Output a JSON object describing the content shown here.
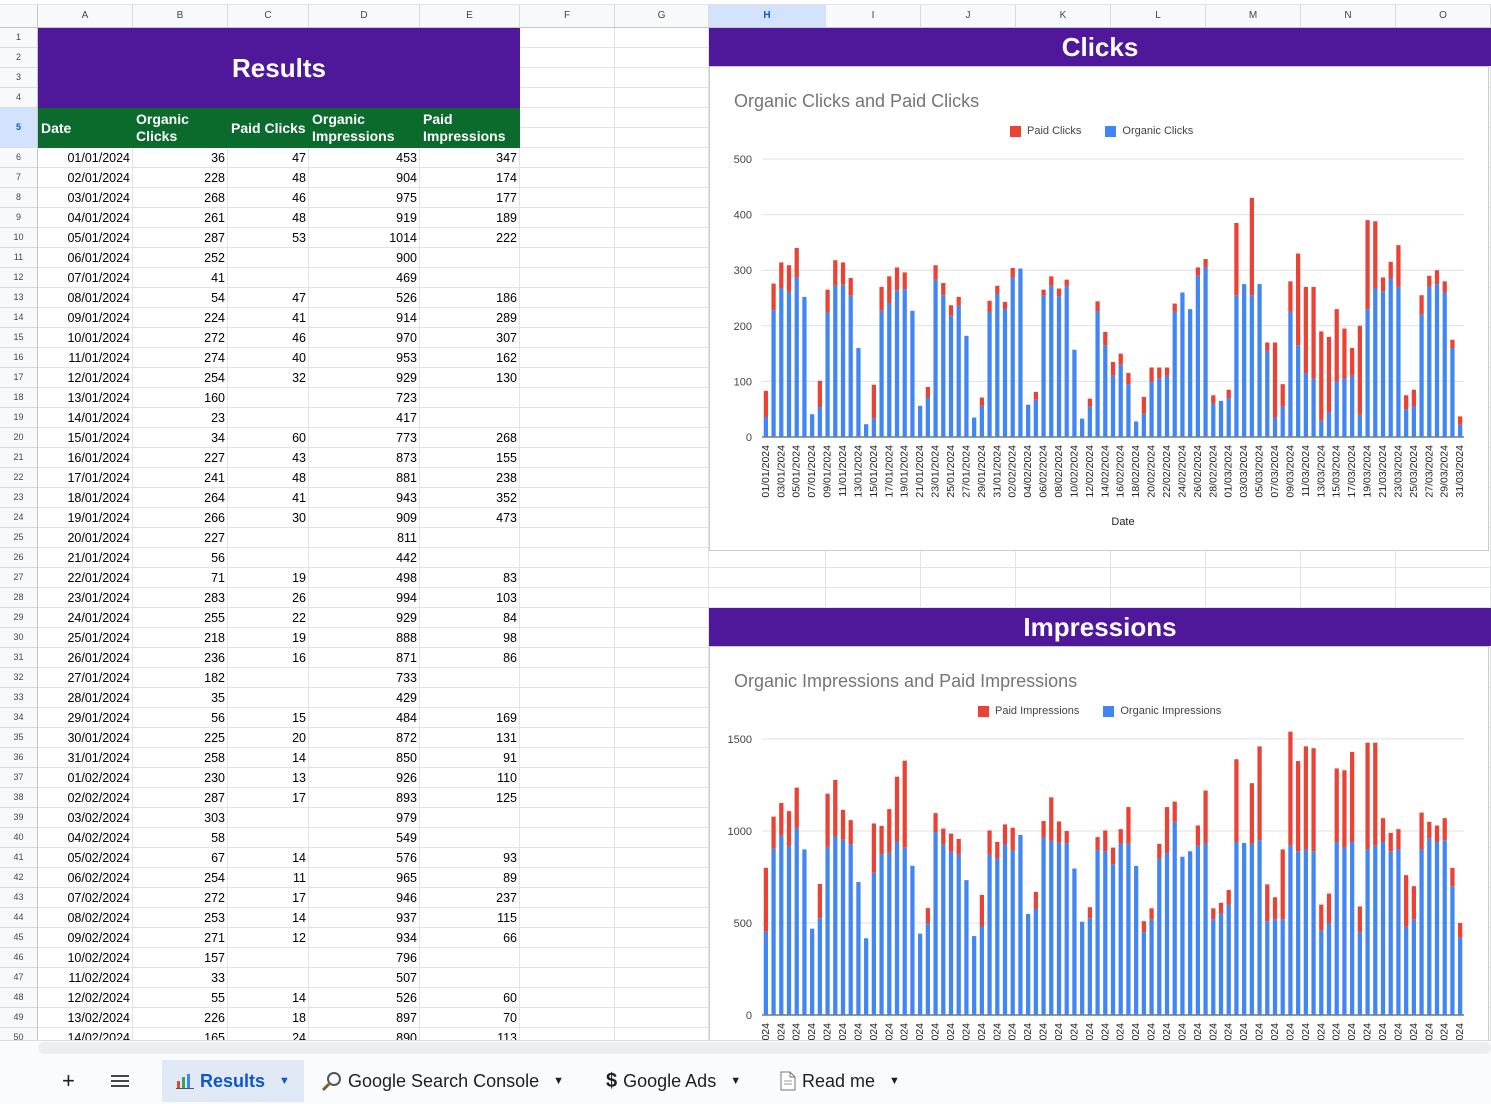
{
  "sheet": {
    "columns": [
      "A",
      "B",
      "C",
      "D",
      "E",
      "F",
      "G",
      "H",
      "I",
      "J",
      "K",
      "L",
      "M",
      "N",
      "O"
    ],
    "selected_column": "H",
    "selected_row": "5",
    "results_title": "Results",
    "headers": [
      "Date",
      "Organic Clicks",
      "Paid Clicks",
      "Organic Impressions",
      "Paid Impressions"
    ],
    "rows": [
      [
        "01/01/2024",
        "36",
        "47",
        "453",
        "347"
      ],
      [
        "02/01/2024",
        "228",
        "48",
        "904",
        "174"
      ],
      [
        "03/01/2024",
        "268",
        "46",
        "975",
        "177"
      ],
      [
        "04/01/2024",
        "261",
        "48",
        "919",
        "189"
      ],
      [
        "05/01/2024",
        "287",
        "53",
        "1014",
        "222"
      ],
      [
        "06/01/2024",
        "252",
        "",
        "900",
        ""
      ],
      [
        "07/01/2024",
        "41",
        "",
        "469",
        ""
      ],
      [
        "08/01/2024",
        "54",
        "47",
        "526",
        "186"
      ],
      [
        "09/01/2024",
        "224",
        "41",
        "914",
        "289"
      ],
      [
        "10/01/2024",
        "272",
        "46",
        "970",
        "307"
      ],
      [
        "11/01/2024",
        "274",
        "40",
        "953",
        "162"
      ],
      [
        "12/01/2024",
        "254",
        "32",
        "929",
        "130"
      ],
      [
        "13/01/2024",
        "160",
        "",
        "723",
        ""
      ],
      [
        "14/01/2024",
        "23",
        "",
        "417",
        ""
      ],
      [
        "15/01/2024",
        "34",
        "60",
        "773",
        "268"
      ],
      [
        "16/01/2024",
        "227",
        "43",
        "873",
        "155"
      ],
      [
        "17/01/2024",
        "241",
        "48",
        "881",
        "238"
      ],
      [
        "18/01/2024",
        "264",
        "41",
        "943",
        "352"
      ],
      [
        "19/01/2024",
        "266",
        "30",
        "909",
        "473"
      ],
      [
        "20/01/2024",
        "227",
        "",
        "811",
        ""
      ],
      [
        "21/01/2024",
        "56",
        "",
        "442",
        ""
      ],
      [
        "22/01/2024",
        "71",
        "19",
        "498",
        "83"
      ],
      [
        "23/01/2024",
        "283",
        "26",
        "994",
        "103"
      ],
      [
        "24/01/2024",
        "255",
        "22",
        "929",
        "84"
      ],
      [
        "25/01/2024",
        "218",
        "19",
        "888",
        "98"
      ],
      [
        "26/01/2024",
        "236",
        "16",
        "871",
        "86"
      ],
      [
        "27/01/2024",
        "182",
        "",
        "733",
        ""
      ],
      [
        "28/01/2024",
        "35",
        "",
        "429",
        ""
      ],
      [
        "29/01/2024",
        "56",
        "15",
        "484",
        "169"
      ],
      [
        "30/01/2024",
        "225",
        "20",
        "872",
        "131"
      ],
      [
        "31/01/2024",
        "258",
        "14",
        "850",
        "91"
      ],
      [
        "01/02/2024",
        "230",
        "13",
        "926",
        "110"
      ],
      [
        "02/02/2024",
        "287",
        "17",
        "893",
        "125"
      ],
      [
        "03/02/2024",
        "303",
        "",
        "979",
        ""
      ],
      [
        "04/02/2024",
        "58",
        "",
        "549",
        ""
      ],
      [
        "05/02/2024",
        "67",
        "14",
        "576",
        "93"
      ],
      [
        "06/02/2024",
        "254",
        "11",
        "965",
        "89"
      ],
      [
        "07/02/2024",
        "272",
        "17",
        "946",
        "237"
      ],
      [
        "08/02/2024",
        "253",
        "14",
        "937",
        "115"
      ],
      [
        "09/02/2024",
        "271",
        "12",
        "934",
        "66"
      ],
      [
        "10/02/2024",
        "157",
        "",
        "796",
        ""
      ],
      [
        "11/02/2024",
        "33",
        "",
        "507",
        ""
      ],
      [
        "12/02/2024",
        "55",
        "14",
        "526",
        "60"
      ],
      [
        "13/02/2024",
        "226",
        "18",
        "897",
        "70"
      ],
      [
        "14/02/2024",
        "165",
        "24",
        "890",
        "113"
      ]
    ]
  },
  "clicks_panel": {
    "header": "Clicks"
  },
  "impressions_panel": {
    "header": "Impressions"
  },
  "chart_data": [
    {
      "type": "bar",
      "stacked": true,
      "title": "Organic Clicks and Paid Clicks",
      "xlabel": "Date",
      "ylabel": "",
      "ylim": [
        0,
        500
      ],
      "yticks": [
        0,
        100,
        200,
        300,
        400,
        500
      ],
      "legend": "top",
      "x_tick_labels": [
        "01/01/2024",
        "03/01/2024",
        "05/01/2024",
        "07/01/2024",
        "09/01/2024",
        "11/01/2024",
        "13/01/2024",
        "15/01/2024",
        "17/01/2024",
        "19/01/2024",
        "21/01/2024",
        "23/01/2024",
        "25/01/2024",
        "27/01/2024",
        "29/01/2024",
        "31/01/2024",
        "02/02/2024",
        "04/02/2024",
        "06/02/2024",
        "08/02/2024",
        "10/02/2024",
        "12/02/2024",
        "14/02/2024",
        "16/02/2024",
        "18/02/2024",
        "20/02/2024",
        "22/02/2024",
        "24/02/2024",
        "26/02/2024",
        "28/02/2024",
        "01/03/2024",
        "03/03/2024",
        "05/03/2024",
        "07/03/2024",
        "09/03/2024",
        "11/03/2024",
        "13/03/2024",
        "15/03/2024",
        "17/03/2024",
        "19/03/2024",
        "21/03/2024",
        "23/03/2024",
        "25/03/2024",
        "27/03/2024",
        "29/03/2024",
        "31/03/2024"
      ],
      "series": [
        {
          "name": "Organic Clicks",
          "color": "#4285f4",
          "values": [
            36,
            228,
            268,
            261,
            287,
            252,
            41,
            54,
            224,
            272,
            274,
            254,
            160,
            23,
            34,
            227,
            241,
            264,
            266,
            227,
            56,
            71,
            283,
            255,
            218,
            236,
            182,
            35,
            56,
            225,
            258,
            230,
            287,
            303,
            58,
            67,
            254,
            272,
            253,
            271,
            157,
            33,
            55,
            226,
            165,
            110,
            130,
            95,
            28,
            42,
            100,
            105,
            110,
            225,
            260,
            230,
            290,
            305,
            60,
            65,
            70,
            255,
            275,
            255,
            275,
            155,
            35,
            55,
            225,
            165,
            115,
            105,
            30,
            45,
            100,
            105,
            110,
            40,
            230,
            268,
            262,
            285,
            270,
            50,
            55,
            220,
            270,
            275,
            260,
            160,
            22
          ]
        },
        {
          "name": "Paid Clicks",
          "color": "#ea4335",
          "values": [
            47,
            48,
            46,
            48,
            53,
            0,
            0,
            47,
            41,
            46,
            40,
            32,
            0,
            0,
            60,
            43,
            48,
            41,
            30,
            0,
            0,
            19,
            26,
            22,
            19,
            16,
            0,
            0,
            15,
            20,
            14,
            13,
            17,
            0,
            0,
            14,
            11,
            17,
            14,
            12,
            0,
            0,
            14,
            18,
            24,
            25,
            20,
            20,
            0,
            30,
            25,
            20,
            15,
            15,
            0,
            0,
            15,
            15,
            15,
            0,
            15,
            130,
            0,
            175,
            0,
            15,
            135,
            40,
            55,
            165,
            155,
            165,
            160,
            135,
            130,
            90,
            50,
            160,
            160,
            120,
            25,
            30,
            75,
            25,
            30,
            35,
            20,
            25,
            20,
            15,
            15
          ]
        }
      ]
    },
    {
      "type": "bar",
      "stacked": true,
      "title": "Organic Impressions and Paid Impressions",
      "xlabel": "",
      "ylabel": "",
      "ylim": [
        0,
        1500
      ],
      "yticks": [
        0,
        500,
        1000,
        1500
      ],
      "legend": "top",
      "series": [
        {
          "name": "Organic Impressions",
          "color": "#4285f4",
          "values": [
            453,
            904,
            975,
            919,
            1014,
            900,
            469,
            526,
            914,
            970,
            953,
            929,
            723,
            417,
            773,
            873,
            881,
            943,
            909,
            811,
            442,
            498,
            994,
            929,
            888,
            871,
            733,
            429,
            484,
            872,
            850,
            926,
            893,
            979,
            549,
            576,
            965,
            946,
            937,
            934,
            796,
            507,
            526,
            897,
            890,
            820,
            930,
            930,
            810,
            450,
            520,
            850,
            880,
            1050,
            860,
            890,
            920,
            930,
            520,
            550,
            600,
            940,
            935,
            930,
            950,
            510,
            520,
            520,
            920,
            890,
            900,
            890,
            460,
            500,
            940,
            910,
            940,
            450,
            900,
            920,
            940,
            890,
            900,
            480,
            520,
            900,
            960,
            940,
            950,
            700,
            420
          ]
        },
        {
          "name": "Paid Impressions",
          "color": "#ea4335",
          "values": [
            347,
            174,
            177,
            189,
            222,
            0,
            0,
            186,
            289,
            307,
            162,
            130,
            0,
            0,
            268,
            155,
            238,
            352,
            473,
            0,
            0,
            83,
            103,
            84,
            98,
            86,
            0,
            0,
            169,
            131,
            91,
            110,
            125,
            0,
            0,
            93,
            89,
            237,
            115,
            66,
            0,
            0,
            60,
            70,
            113,
            90,
            80,
            200,
            0,
            60,
            60,
            80,
            250,
            110,
            0,
            0,
            110,
            290,
            60,
            60,
            80,
            450,
            0,
            330,
            510,
            200,
            120,
            380,
            620,
            490,
            560,
            560,
            140,
            160,
            400,
            420,
            490,
            140,
            580,
            560,
            130,
            100,
            110,
            280,
            180,
            200,
            90,
            90,
            120,
            100,
            80
          ]
        }
      ]
    }
  ],
  "bottom": {
    "add_label": "+",
    "tabs": [
      {
        "label": "Results",
        "icon": "bar-chart-icon",
        "active": true
      },
      {
        "label": "Google Search Console",
        "icon": "magnifier-icon",
        "active": false
      },
      {
        "label": "Google Ads",
        "icon": "dollar-icon",
        "active": false
      },
      {
        "label": "Read me",
        "icon": "document-icon",
        "active": false
      }
    ]
  }
}
